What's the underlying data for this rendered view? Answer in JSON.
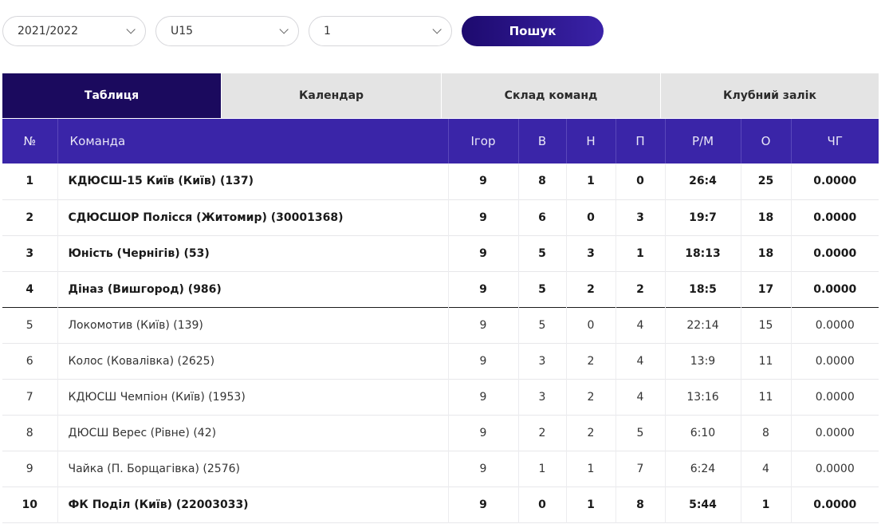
{
  "filters": {
    "season": "2021/2022",
    "age_group": "U15",
    "league": "1",
    "search_label": "Пошук"
  },
  "tabs": [
    {
      "label": "Таблиця",
      "active": true
    },
    {
      "label": "Календар",
      "active": false
    },
    {
      "label": "Склад команд",
      "active": false
    },
    {
      "label": "Клубний залік",
      "active": false
    }
  ],
  "table": {
    "headers": [
      "№",
      "Команда",
      "Ігор",
      "В",
      "Н",
      "П",
      "Р/М",
      "О",
      "ЧГ"
    ],
    "rows": [
      {
        "pos": "1",
        "team": "КДЮСШ-15 Київ (Київ) (137)",
        "games": "9",
        "w": "8",
        "d": "1",
        "l": "0",
        "goals": "26:4",
        "pts": "25",
        "fp": "0.0000",
        "bold": true
      },
      {
        "pos": "2",
        "team": "СДЮСШОР Полісся (Житомир) (30001368)",
        "games": "9",
        "w": "6",
        "d": "0",
        "l": "3",
        "goals": "19:7",
        "pts": "18",
        "fp": "0.0000",
        "bold": true
      },
      {
        "pos": "3",
        "team": "Юність (Чернігів) (53)",
        "games": "9",
        "w": "5",
        "d": "3",
        "l": "1",
        "goals": "18:13",
        "pts": "18",
        "fp": "0.0000",
        "bold": true
      },
      {
        "pos": "4",
        "team": "Діназ (Вишгород) (986)",
        "games": "9",
        "w": "5",
        "d": "2",
        "l": "2",
        "goals": "18:5",
        "pts": "17",
        "fp": "0.0000",
        "bold": true
      },
      {
        "pos": "5",
        "team": "Локомотив (Київ) (139)",
        "games": "9",
        "w": "5",
        "d": "0",
        "l": "4",
        "goals": "22:14",
        "pts": "15",
        "fp": "0.0000",
        "bold": false
      },
      {
        "pos": "6",
        "team": "Колос (Ковалівка) (2625)",
        "games": "9",
        "w": "3",
        "d": "2",
        "l": "4",
        "goals": "13:9",
        "pts": "11",
        "fp": "0.0000",
        "bold": false
      },
      {
        "pos": "7",
        "team": "КДЮСШ Чемпіон (Київ) (1953)",
        "games": "9",
        "w": "3",
        "d": "2",
        "l": "4",
        "goals": "13:16",
        "pts": "11",
        "fp": "0.0000",
        "bold": false
      },
      {
        "pos": "8",
        "team": "ДЮСШ Верес (Рівне) (42)",
        "games": "9",
        "w": "2",
        "d": "2",
        "l": "5",
        "goals": "6:10",
        "pts": "8",
        "fp": "0.0000",
        "bold": false
      },
      {
        "pos": "9",
        "team": "Чайка (П. Борщагівка) (2576)",
        "games": "9",
        "w": "1",
        "d": "1",
        "l": "7",
        "goals": "6:24",
        "pts": "4",
        "fp": "0.0000",
        "bold": false
      },
      {
        "pos": "10",
        "team": "ФК Поділ (Київ) (22003033)",
        "games": "9",
        "w": "0",
        "d": "1",
        "l": "8",
        "goals": "5:44",
        "pts": "1",
        "fp": "0.0000",
        "bold": true
      }
    ]
  },
  "colors": {
    "accent": "#3a25a8",
    "active_tab": "#1b0a5e",
    "tab_bg": "#e4e4e4"
  }
}
